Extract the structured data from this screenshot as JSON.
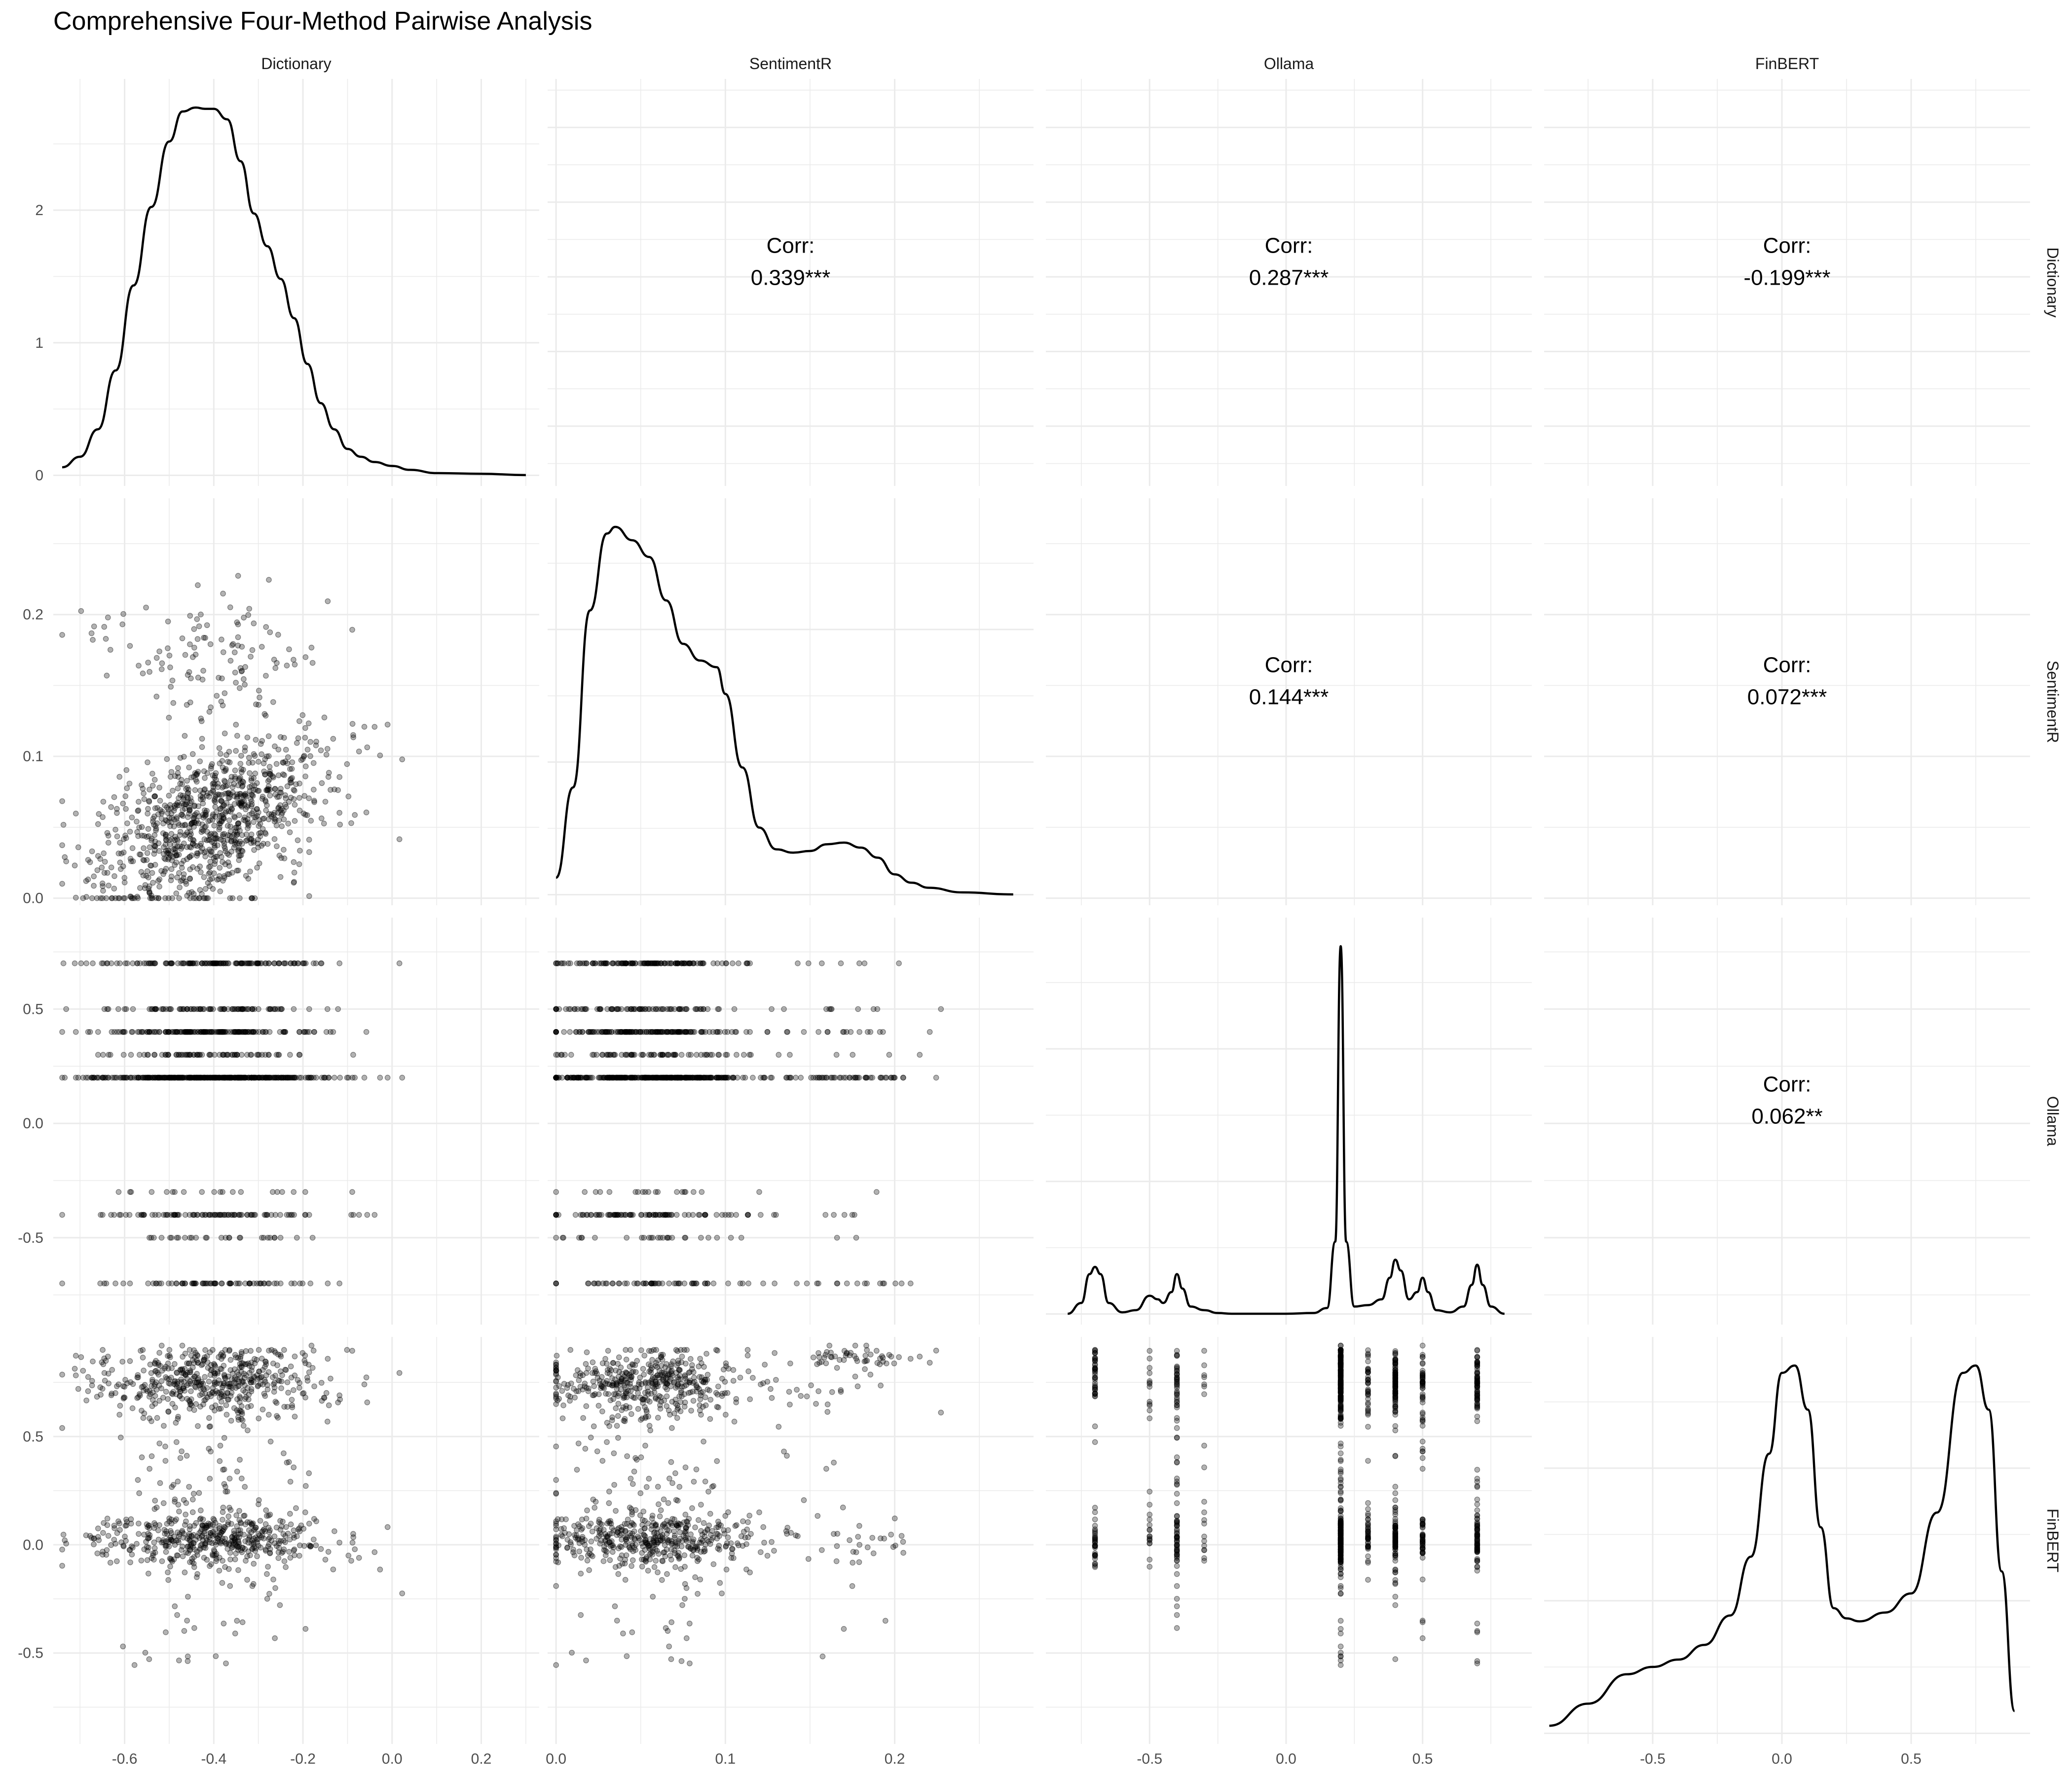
{
  "chart_data": {
    "type": "scatter",
    "title": "Comprehensive Four-Method Pairwise Analysis",
    "variables": [
      "Dictionary",
      "SentimentR",
      "Ollama",
      "FinBERT"
    ],
    "axes": {
      "Dictionary": {
        "range": [
          -0.76,
          0.33
        ],
        "ticks": [
          -0.6,
          -0.4,
          -0.2,
          0.0,
          0.2
        ],
        "tick_labels": [
          "-0.6",
          "-0.4",
          "-0.2",
          "0.0",
          "0.2"
        ]
      },
      "SentimentR": {
        "range": [
          -0.005,
          0.282
        ],
        "ticks": [
          0.0,
          0.1,
          0.2
        ],
        "tick_labels": [
          "0.0",
          "0.1",
          "0.2"
        ]
      },
      "Ollama": {
        "range": [
          -0.88,
          0.9
        ],
        "ticks": [
          -0.5,
          0.0,
          0.5
        ],
        "tick_labels": [
          "-0.5",
          "0.0",
          "0.5"
        ]
      },
      "FinBERT": {
        "range": [
          -0.92,
          0.96
        ],
        "ticks": [
          -0.5,
          0.0,
          0.5
        ],
        "tick_labels": [
          "-0.5",
          "0.0",
          "0.5"
        ]
      }
    },
    "density_axis": {
      "range": [
        -0.08,
        2.99
      ],
      "ticks": [
        0,
        1,
        2
      ],
      "tick_labels": [
        "0",
        "1",
        "2"
      ]
    },
    "correlations": [
      {
        "row": "Dictionary",
        "col": "SentimentR",
        "label": "Corr:",
        "value": "0.339***"
      },
      {
        "row": "Dictionary",
        "col": "Ollama",
        "label": "Corr:",
        "value": "0.287***"
      },
      {
        "row": "Dictionary",
        "col": "FinBERT",
        "label": "Corr:",
        "value": "-0.199***"
      },
      {
        "row": "SentimentR",
        "col": "Ollama",
        "label": "Corr:",
        "value": "0.144***"
      },
      {
        "row": "SentimentR",
        "col": "FinBERT",
        "label": "Corr:",
        "value": "0.072***"
      },
      {
        "row": "Ollama",
        "col": "FinBERT",
        "label": "Corr:",
        "value": "0.062**"
      }
    ],
    "densities": {
      "Dictionary": {
        "x": [
          -0.74,
          -0.7,
          -0.66,
          -0.62,
          -0.58,
          -0.54,
          -0.5,
          -0.47,
          -0.44,
          -0.42,
          -0.4,
          -0.37,
          -0.34,
          -0.31,
          -0.28,
          -0.25,
          -0.22,
          -0.19,
          -0.16,
          -0.13,
          -0.1,
          -0.07,
          -0.04,
          0.0,
          0.04,
          0.1,
          0.2,
          0.3
        ],
        "y": [
          0.06,
          0.14,
          0.35,
          0.8,
          1.45,
          2.05,
          2.55,
          2.78,
          2.81,
          2.8,
          2.8,
          2.72,
          2.4,
          2.0,
          1.75,
          1.5,
          1.2,
          0.85,
          0.55,
          0.35,
          0.2,
          0.14,
          0.1,
          0.07,
          0.04,
          0.015,
          0.01,
          0.0
        ]
      },
      "SentimentR": {
        "x": [
          0.0,
          0.01,
          0.02,
          0.03,
          0.035,
          0.045,
          0.055,
          0.065,
          0.075,
          0.085,
          0.095,
          0.1,
          0.11,
          0.12,
          0.13,
          0.14,
          0.15,
          0.16,
          0.17,
          0.18,
          0.19,
          0.2,
          0.21,
          0.22,
          0.24,
          0.27
        ],
        "y": [
          0.5,
          3.2,
          8.5,
          10.8,
          11.0,
          10.6,
          10.1,
          8.8,
          7.5,
          7.0,
          6.8,
          6.0,
          3.8,
          2.0,
          1.35,
          1.25,
          1.3,
          1.5,
          1.55,
          1.4,
          1.1,
          0.6,
          0.35,
          0.2,
          0.06,
          0.0
        ]
      },
      "Ollama": {
        "x": [
          -0.8,
          -0.75,
          -0.72,
          -0.7,
          -0.68,
          -0.65,
          -0.6,
          -0.55,
          -0.5,
          -0.47,
          -0.45,
          -0.42,
          -0.4,
          -0.38,
          -0.35,
          -0.3,
          -0.25,
          -0.2,
          0.0,
          0.1,
          0.15,
          0.18,
          0.2,
          0.22,
          0.25,
          0.3,
          0.35,
          0.38,
          0.4,
          0.42,
          0.45,
          0.48,
          0.5,
          0.52,
          0.55,
          0.6,
          0.65,
          0.68,
          0.7,
          0.72,
          0.75,
          0.8
        ],
        "y": [
          0.0,
          0.15,
          0.55,
          0.65,
          0.55,
          0.15,
          0.02,
          0.05,
          0.25,
          0.2,
          0.15,
          0.3,
          0.55,
          0.35,
          0.1,
          0.05,
          0.01,
          0.0,
          0.0,
          0.01,
          0.08,
          1.0,
          5.1,
          1.0,
          0.1,
          0.12,
          0.2,
          0.5,
          0.75,
          0.6,
          0.2,
          0.3,
          0.5,
          0.3,
          0.05,
          0.02,
          0.1,
          0.4,
          0.68,
          0.4,
          0.1,
          0.0
        ]
      },
      "FinBERT": {
        "x": [
          -0.9,
          -0.75,
          -0.6,
          -0.5,
          -0.4,
          -0.3,
          -0.2,
          -0.12,
          -0.05,
          0.0,
          0.05,
          0.1,
          0.15,
          0.2,
          0.25,
          0.3,
          0.4,
          0.5,
          0.6,
          0.7,
          0.75,
          0.8,
          0.85,
          0.9
        ],
        "y": [
          0.05,
          0.2,
          0.4,
          0.45,
          0.5,
          0.6,
          0.8,
          1.2,
          1.9,
          2.45,
          2.5,
          2.2,
          1.4,
          0.85,
          0.78,
          0.76,
          0.82,
          0.95,
          1.5,
          2.45,
          2.5,
          2.2,
          1.1,
          0.15
        ]
      }
    },
    "scatter_pairs": [
      {
        "x": "Dictionary",
        "y": "SentimentR",
        "pattern": "two clusters: dense band y 0.02-0.13 rising with x, plus upper cloud y 0.14-0.25 near x -0.45..-0.3"
      },
      {
        "x": "Dictionary",
        "y": "Ollama",
        "pattern": "horizontal stripes at Ollama levels -0.7, -0.5, -0.4, -0.3, 0.2, 0.3, 0.4, 0.5, 0.7"
      },
      {
        "x": "SentimentR",
        "y": "Ollama",
        "pattern": "horizontal stripes at Ollama levels"
      },
      {
        "x": "Dictionary",
        "y": "FinBERT",
        "pattern": "two horizontal concentrations near 0.0 and 0.75"
      },
      {
        "x": "SentimentR",
        "y": "FinBERT",
        "pattern": "dense near 0.75 at low x and near 0.0 at x 0.05-0.1; upper tail at 0.85 for x > 0.15"
      },
      {
        "x": "Ollama",
        "y": "FinBERT",
        "pattern": "vertical stripes at Ollama levels"
      }
    ]
  }
}
